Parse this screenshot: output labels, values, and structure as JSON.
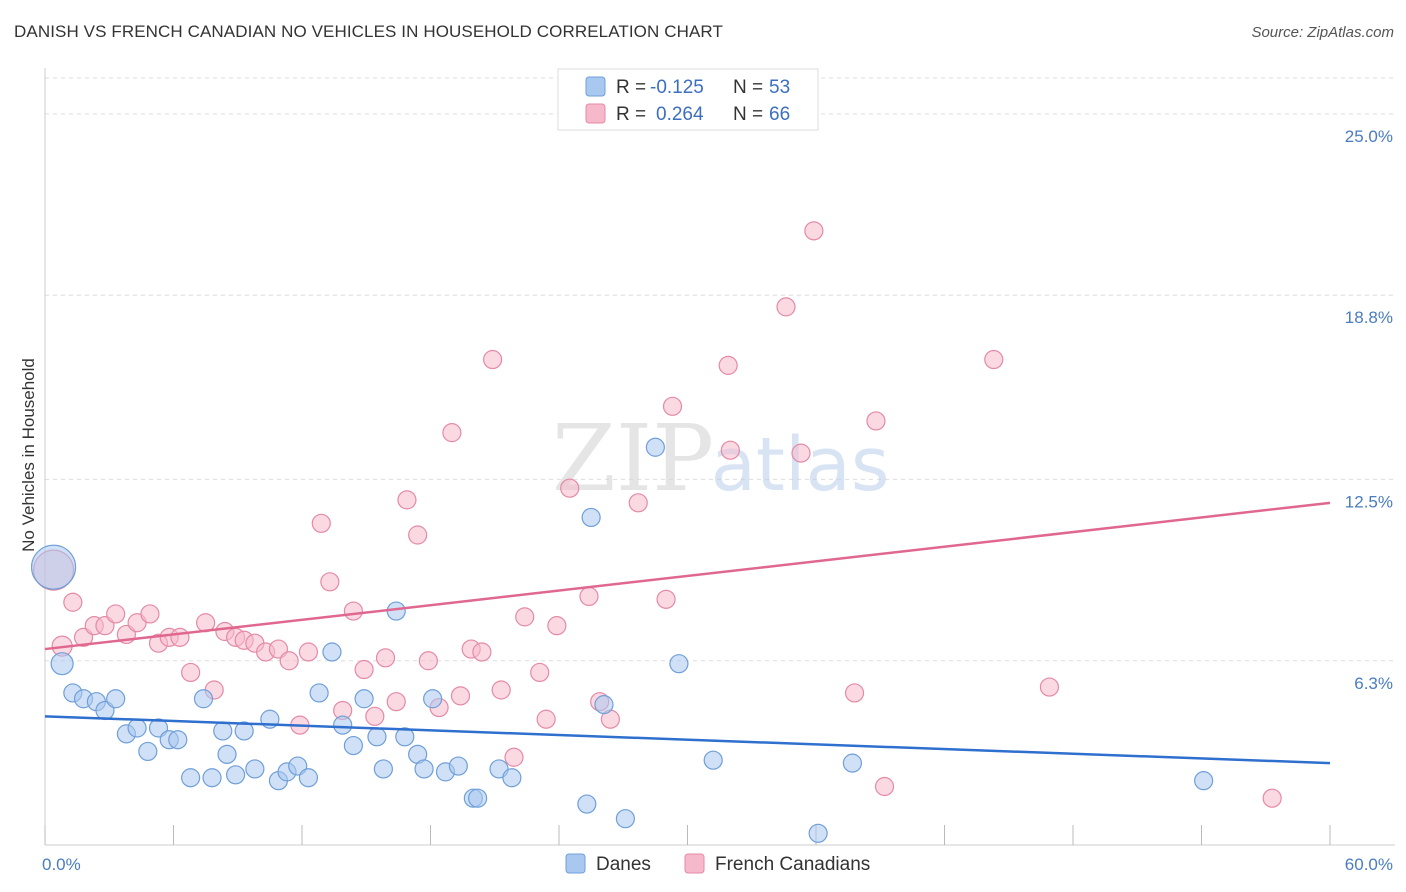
{
  "header": {
    "title": "DANISH VS FRENCH CANADIAN NO VEHICLES IN HOUSEHOLD CORRELATION CHART",
    "source": "Source: ZipAtlas.com"
  },
  "watermark": {
    "zip": "ZIP",
    "atlas": "atlas"
  },
  "legend": {
    "r_label": "R =",
    "n_label": "N =",
    "rows": [
      {
        "r": "-0.125",
        "n": "53",
        "color": "#a9c8f0"
      },
      {
        "r": "0.264",
        "n": "66",
        "color": "#f6b9cc"
      }
    ]
  },
  "chart_data": {
    "type": "scatter",
    "ylabel": "No Vehicles in Household",
    "xlim": [
      0,
      60
    ],
    "ylim": [
      0,
      26.5
    ],
    "y_ticks": [
      {
        "value": 6.3,
        "label": "6.3%"
      },
      {
        "value": 12.5,
        "label": "12.5%"
      },
      {
        "value": 18.8,
        "label": "18.8%"
      },
      {
        "value": 25.0,
        "label": "25.0%"
      }
    ],
    "x_tick_labels": [
      {
        "value": 0,
        "label": "0.0%"
      },
      {
        "value": 60,
        "label": "60.0%"
      }
    ],
    "x_minor_ticks": [
      0,
      6,
      12,
      18,
      24,
      30,
      36,
      42,
      48,
      54,
      60
    ],
    "grid": "horizontal-dashed",
    "legend_position": "bottom",
    "series": [
      {
        "name": "Danes",
        "color": "#a9c8f0",
        "stroke": "#6f9fd8",
        "trend": {
          "x0": 0,
          "y0": 4.4,
          "x1": 60,
          "y1": 2.8,
          "color": "#2f6fce"
        },
        "points": [
          [
            0.4,
            9.5,
            22
          ],
          [
            0.8,
            6.2,
            11
          ],
          [
            1.3,
            5.2,
            9
          ],
          [
            1.8,
            5.0,
            9
          ],
          [
            2.4,
            4.9,
            9
          ],
          [
            2.8,
            4.6,
            9
          ],
          [
            3.3,
            5.0,
            9
          ],
          [
            3.8,
            3.8,
            9
          ],
          [
            4.3,
            4.0,
            9
          ],
          [
            4.8,
            3.2,
            9
          ],
          [
            5.3,
            4.0,
            9
          ],
          [
            5.8,
            3.6,
            9
          ],
          [
            6.2,
            3.6,
            9
          ],
          [
            6.8,
            2.3,
            9
          ],
          [
            7.4,
            5.0,
            9
          ],
          [
            7.8,
            2.3,
            9
          ],
          [
            8.3,
            3.9,
            9
          ],
          [
            8.5,
            3.1,
            9
          ],
          [
            8.9,
            2.4,
            9
          ],
          [
            9.3,
            3.9,
            9
          ],
          [
            9.8,
            2.6,
            9
          ],
          [
            10.5,
            4.3,
            9
          ],
          [
            10.9,
            2.2,
            9
          ],
          [
            11.3,
            2.5,
            9
          ],
          [
            11.8,
            2.7,
            9
          ],
          [
            12.3,
            2.3,
            9
          ],
          [
            12.8,
            5.2,
            9
          ],
          [
            13.4,
            6.6,
            9
          ],
          [
            13.9,
            4.1,
            9
          ],
          [
            14.4,
            3.4,
            9
          ],
          [
            14.9,
            5.0,
            9
          ],
          [
            15.5,
            3.7,
            9
          ],
          [
            15.8,
            2.6,
            9
          ],
          [
            16.4,
            8.0,
            9
          ],
          [
            16.8,
            3.7,
            9
          ],
          [
            17.4,
            3.1,
            9
          ],
          [
            17.7,
            2.6,
            9
          ],
          [
            18.1,
            5.0,
            9
          ],
          [
            18.7,
            2.5,
            9
          ],
          [
            19.3,
            2.7,
            9
          ],
          [
            20.0,
            1.6,
            9
          ],
          [
            20.2,
            1.6,
            9
          ],
          [
            21.2,
            2.6,
            9
          ],
          [
            21.8,
            2.3,
            9
          ],
          [
            25.3,
            1.4,
            9
          ],
          [
            25.5,
            11.2,
            9
          ],
          [
            26.1,
            4.8,
            9
          ],
          [
            27.1,
            0.9,
            9
          ],
          [
            28.5,
            13.6,
            9
          ],
          [
            29.6,
            6.2,
            9
          ],
          [
            31.2,
            2.9,
            9
          ],
          [
            36.1,
            0.4,
            9
          ],
          [
            37.7,
            2.8,
            9
          ],
          [
            54.1,
            2.2,
            9
          ]
        ]
      },
      {
        "name": "French Canadians",
        "color": "#f6b9cc",
        "stroke": "#e58aa6",
        "trend": {
          "x0": 0,
          "y0": 6.7,
          "x1": 60,
          "y1": 11.7,
          "color": "#e0678f"
        },
        "points": [
          [
            0.4,
            9.4,
            20
          ],
          [
            0.8,
            6.8,
            10
          ],
          [
            1.3,
            8.3,
            9
          ],
          [
            1.8,
            7.1,
            9
          ],
          [
            2.3,
            7.5,
            9
          ],
          [
            2.8,
            7.5,
            9
          ],
          [
            3.3,
            7.9,
            9
          ],
          [
            3.8,
            7.2,
            9
          ],
          [
            4.3,
            7.6,
            9
          ],
          [
            4.9,
            7.9,
            9
          ],
          [
            5.3,
            6.9,
            9
          ],
          [
            5.8,
            7.1,
            9
          ],
          [
            6.3,
            7.1,
            9
          ],
          [
            6.8,
            5.9,
            9
          ],
          [
            7.5,
            7.6,
            9
          ],
          [
            7.9,
            5.3,
            9
          ],
          [
            8.4,
            7.3,
            9
          ],
          [
            8.9,
            7.1,
            9
          ],
          [
            9.3,
            7.0,
            9
          ],
          [
            9.8,
            6.9,
            9
          ],
          [
            10.3,
            6.6,
            9
          ],
          [
            10.9,
            6.7,
            9
          ],
          [
            11.4,
            6.3,
            9
          ],
          [
            11.9,
            4.1,
            9
          ],
          [
            12.3,
            6.6,
            9
          ],
          [
            12.9,
            11.0,
            9
          ],
          [
            13.3,
            9.0,
            9
          ],
          [
            13.9,
            4.6,
            9
          ],
          [
            14.4,
            8.0,
            9
          ],
          [
            14.9,
            6.0,
            9
          ],
          [
            15.4,
            4.4,
            9
          ],
          [
            15.9,
            6.4,
            9
          ],
          [
            16.4,
            4.9,
            9
          ],
          [
            16.9,
            11.8,
            9
          ],
          [
            17.4,
            10.6,
            9
          ],
          [
            17.9,
            6.3,
            9
          ],
          [
            18.4,
            4.7,
            9
          ],
          [
            19.0,
            14.1,
            9
          ],
          [
            19.4,
            5.1,
            9
          ],
          [
            19.9,
            6.7,
            9
          ],
          [
            20.4,
            6.6,
            9
          ],
          [
            20.9,
            16.6,
            9
          ],
          [
            21.3,
            5.3,
            9
          ],
          [
            21.9,
            3.0,
            9
          ],
          [
            22.4,
            7.8,
            9
          ],
          [
            23.1,
            5.9,
            9
          ],
          [
            23.4,
            4.3,
            9
          ],
          [
            23.9,
            7.5,
            9
          ],
          [
            24.5,
            12.2,
            9
          ],
          [
            25.4,
            8.5,
            9
          ],
          [
            25.9,
            4.9,
            9
          ],
          [
            26.4,
            4.3,
            9
          ],
          [
            27.7,
            11.7,
            9
          ],
          [
            29.0,
            8.4,
            9
          ],
          [
            29.3,
            15.0,
            9
          ],
          [
            31.9,
            16.4,
            9
          ],
          [
            32.0,
            13.5,
            9
          ],
          [
            34.6,
            18.4,
            9
          ],
          [
            35.3,
            13.4,
            9
          ],
          [
            35.9,
            21.0,
            9
          ],
          [
            37.8,
            5.2,
            9
          ],
          [
            38.8,
            14.5,
            9
          ],
          [
            39.2,
            2.0,
            9
          ],
          [
            44.3,
            16.6,
            9
          ],
          [
            46.9,
            5.4,
            9
          ],
          [
            57.3,
            1.6,
            9
          ]
        ]
      }
    ]
  },
  "bottom_legend": [
    {
      "label": "Danes",
      "color": "#a9c8f0",
      "stroke": "#6f9fd8"
    },
    {
      "label": "French Canadians",
      "color": "#f6b9cc",
      "stroke": "#e58aa6"
    }
  ]
}
